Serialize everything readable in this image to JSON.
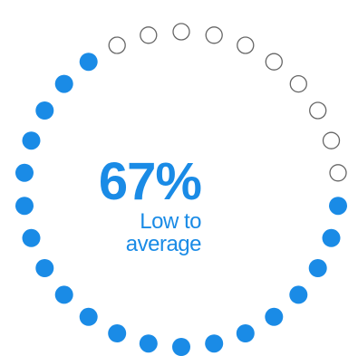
{
  "gauge": {
    "value": 0.67,
    "total_dots": 30,
    "filled_dots": 20,
    "percent_text": "67%",
    "label": "Low to average",
    "filled_color": "#1a8be6",
    "empty_color": "#ffffff",
    "empty_stroke_color": "#666666"
  }
}
